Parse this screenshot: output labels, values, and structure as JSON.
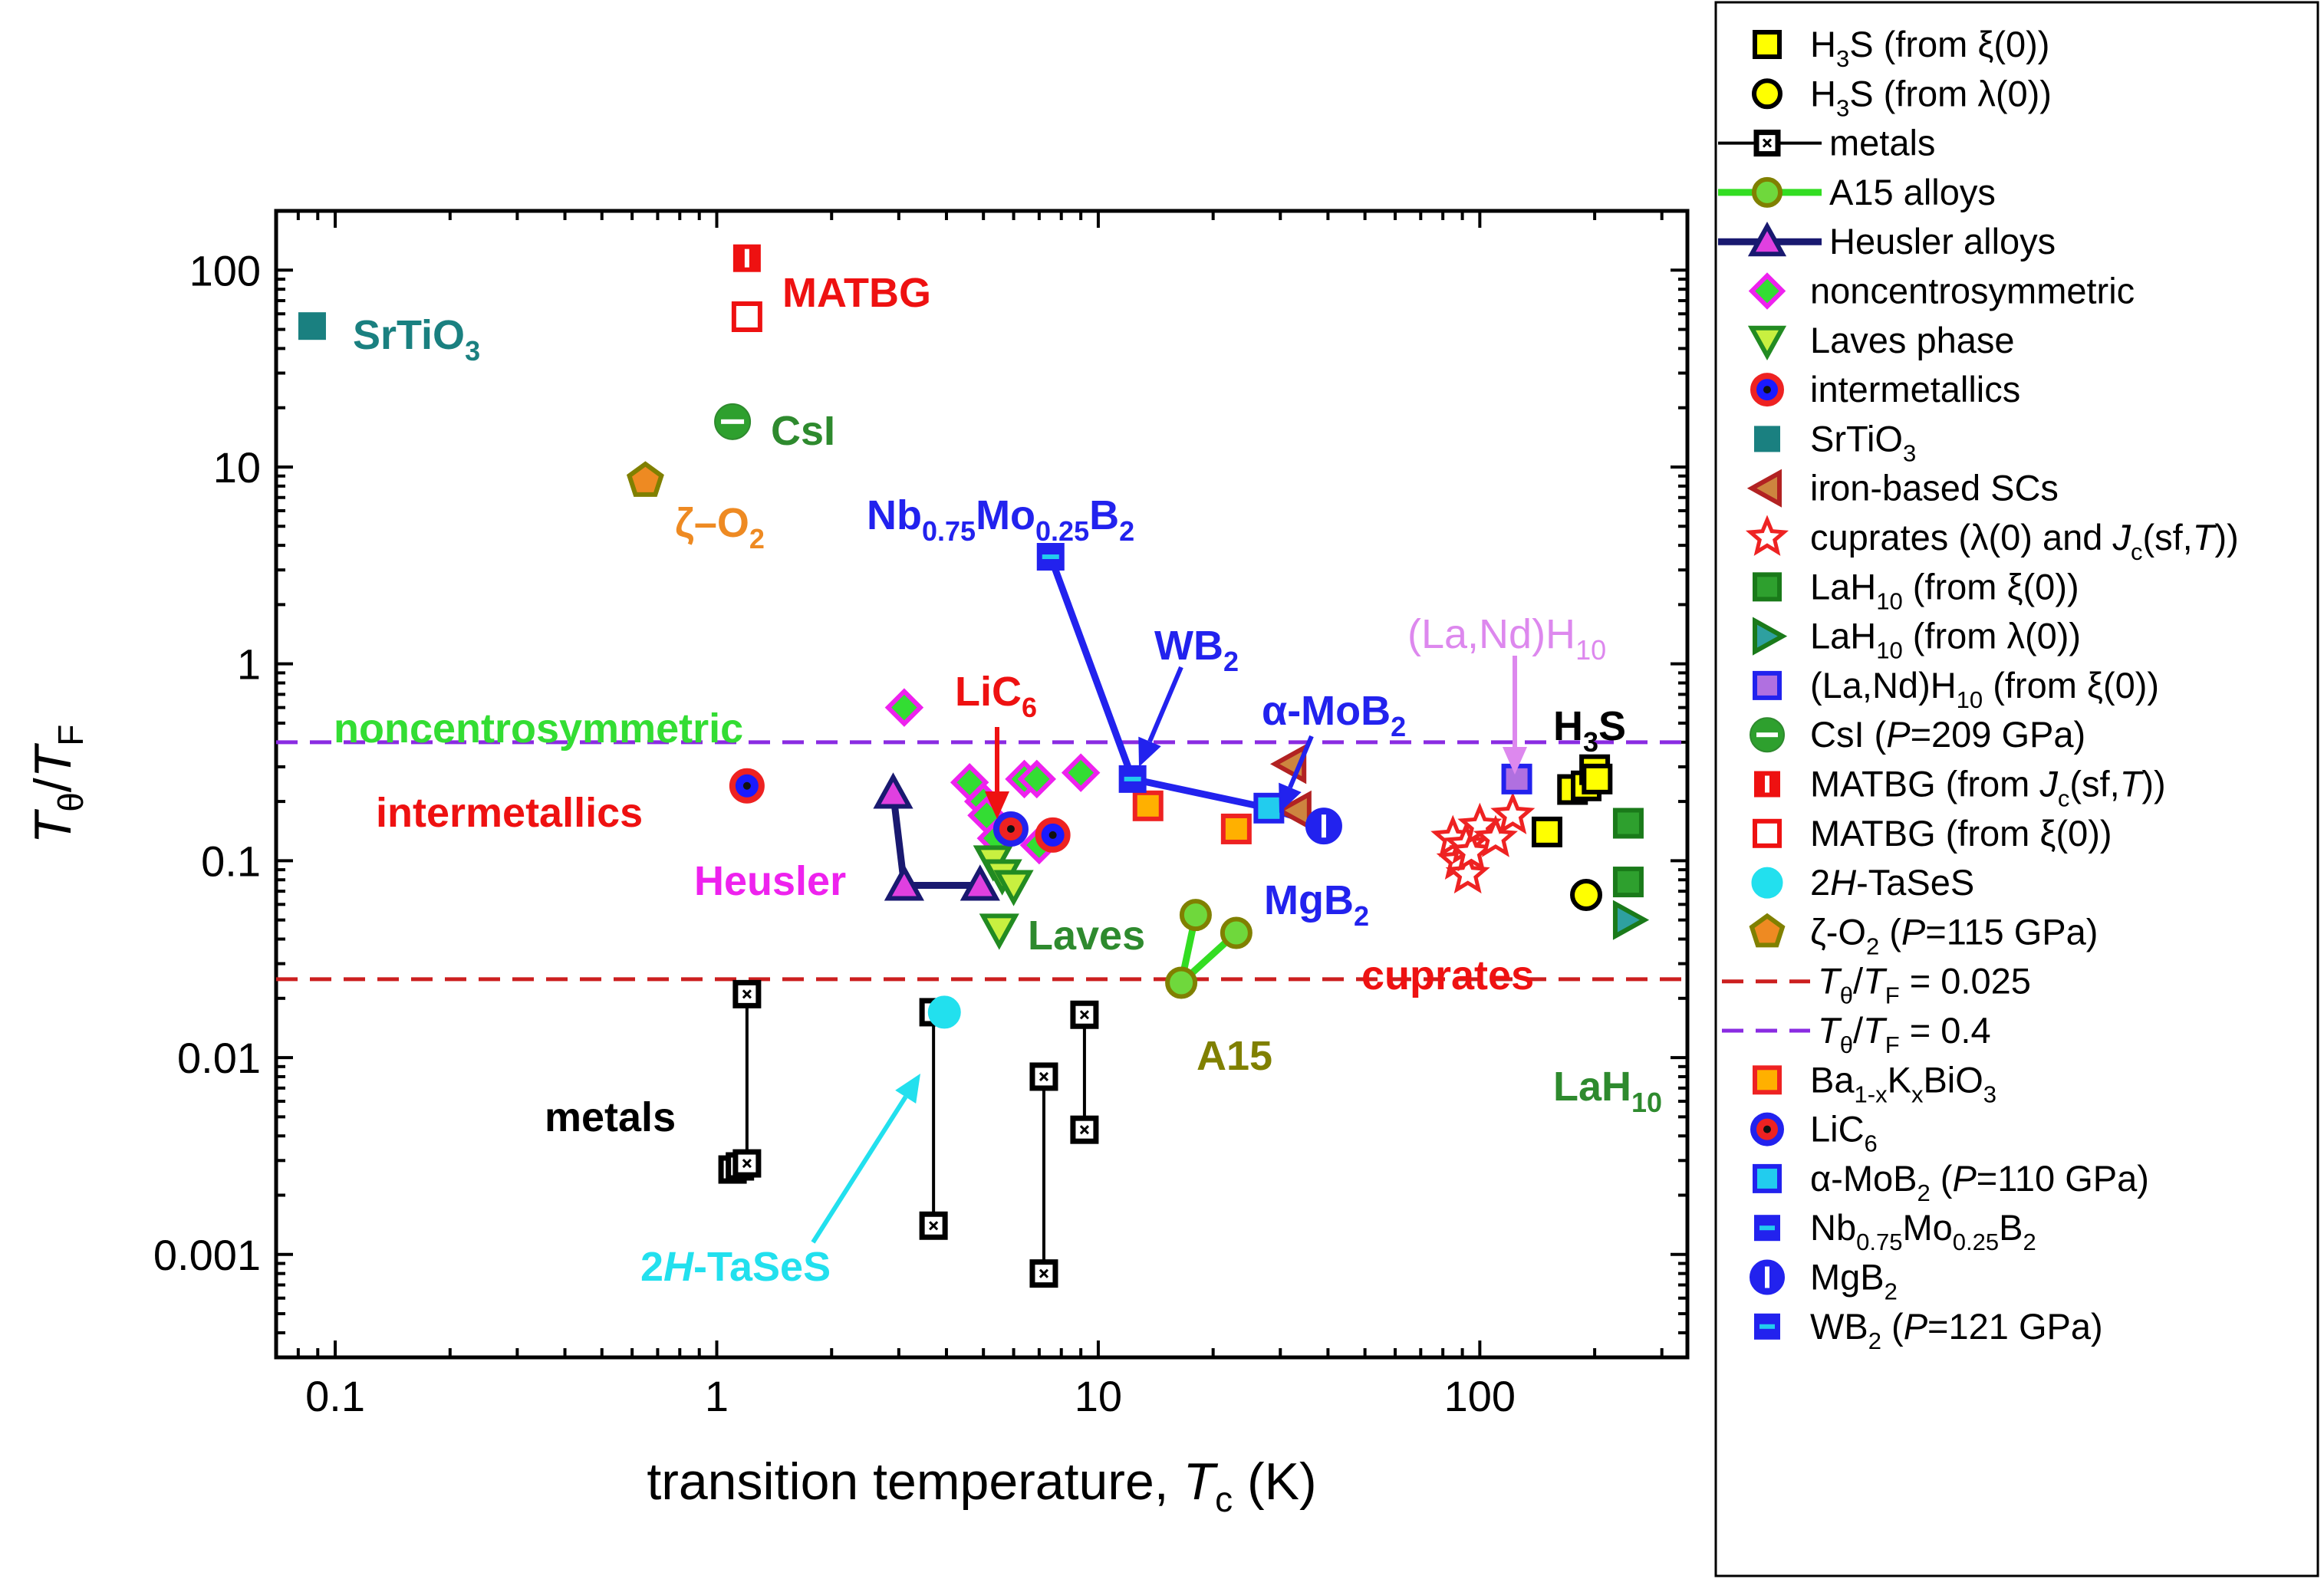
{
  "chart_data": {
    "type": "scatter",
    "xlabel": "transition temperature,",
    "xlabel_var": "T",
    "xlabel_sub": "c",
    "xlabel_unit": "(K)",
    "ylabel_num": "T",
    "ylabel_num_sub": "θ",
    "ylabel_den": "T",
    "ylabel_den_sub": "F",
    "xscale": "log",
    "yscale": "log",
    "xlim": [
      0.07,
      350
    ],
    "ylim": [
      0.0003,
      200
    ],
    "x_ticks": [
      0.1,
      1,
      10,
      100
    ],
    "x_tick_labels": [
      "0.1",
      "1",
      "10",
      "100"
    ],
    "y_ticks": [
      0.001,
      0.01,
      0.1,
      1,
      10,
      100
    ],
    "y_tick_labels": [
      "0.001",
      "0.01",
      "0.1",
      "1",
      "10",
      "100"
    ],
    "hlines": [
      {
        "name": "Tθ/TF = 0.025",
        "y": 0.025,
        "color": "#cc1f1f"
      },
      {
        "name": "Tθ/TF = 0.4",
        "y": 0.4,
        "color": "#8a2be2"
      }
    ],
    "series": [
      {
        "name": "H3S (from ξ(0))",
        "marker": "square",
        "fill": "#ffff00",
        "stroke": "#000000",
        "points": [
          [
            150,
            0.14
          ],
          [
            175,
            0.23
          ],
          [
            190,
            0.24
          ],
          [
            200,
            0.29
          ],
          [
            203,
            0.26
          ]
        ]
      },
      {
        "name": "H3S (from λ(0))",
        "marker": "circle",
        "fill": "#ffff00",
        "stroke": "#000000",
        "points": [
          [
            190,
            0.067
          ]
        ]
      },
      {
        "name": "metals",
        "marker": "squarex",
        "fill": "#ffffff",
        "stroke": "#000000",
        "line": true,
        "groups": [
          [
            [
              1.1,
              0.0027
            ],
            [
              1.15,
              0.0028
            ],
            [
              1.2,
              0.0029
            ],
            [
              1.2,
              0.021
            ]
          ],
          [
            [
              3.7,
              0.0014
            ],
            [
              3.7,
              0.017
            ]
          ],
          [
            [
              7.2,
              0.0008
            ],
            [
              7.2,
              0.008
            ]
          ],
          [
            [
              9.2,
              0.0043
            ],
            [
              9.2,
              0.0165
            ]
          ]
        ]
      },
      {
        "name": "A15 alloys",
        "marker": "circle",
        "fill": "#6fd83c",
        "stroke": "#808000",
        "line": true,
        "lineColor": "#33dd22",
        "groups": [
          [
            [
              16.5,
              0.024
            ],
            [
              18,
              0.053
            ]
          ],
          [
            [
              16.5,
              0.024
            ],
            [
              23,
              0.043
            ]
          ]
        ]
      },
      {
        "name": "Heusler alloys",
        "marker": "triangle",
        "fill": "#e040e0",
        "stroke": "#191970",
        "line": true,
        "groups": [
          [
            [
              2.9,
              0.22
            ],
            [
              3.1,
              0.075
            ],
            [
              4.9,
              0.075
            ]
          ]
        ]
      },
      {
        "name": "noncentrosymmetric",
        "marker": "diamond",
        "fill": "#33dd33",
        "stroke": "#ee22ee",
        "points": [
          [
            3.1,
            0.6
          ],
          [
            4.6,
            0.25
          ],
          [
            5.0,
            0.2
          ],
          [
            5.1,
            0.17
          ],
          [
            5.4,
            0.13
          ],
          [
            6.4,
            0.26
          ],
          [
            6.9,
            0.26
          ],
          [
            7.0,
            0.12
          ],
          [
            9.0,
            0.28
          ]
        ]
      },
      {
        "name": "Laves phase",
        "marker": "triangle-down",
        "fill": "#c8f040",
        "stroke": "#228b22",
        "points": [
          [
            5.3,
            0.1
          ],
          [
            5.6,
            0.085
          ],
          [
            6.0,
            0.075
          ],
          [
            5.5,
            0.045
          ]
        ]
      },
      {
        "name": "intermetallics",
        "marker": "circle-dot",
        "fill": "#1a1aff",
        "stroke": "#ee2222",
        "points": [
          [
            1.2,
            0.24
          ],
          [
            7.6,
            0.135
          ]
        ]
      },
      {
        "name": "SrTiO3",
        "marker": "square-filled",
        "fill": "#1a8080",
        "stroke": "#1a8080",
        "points": [
          [
            0.087,
            52
          ]
        ]
      },
      {
        "name": "iron-based SCs",
        "marker": "triangle-left",
        "fill": "#cd853f",
        "stroke": "#b22222",
        "points": [
          [
            32,
            0.31
          ],
          [
            33,
            0.18
          ]
        ]
      },
      {
        "name": "cuprates (λ(0) and Jc(sf,T))",
        "marker": "star",
        "fill": "#ffffff",
        "stroke": "#ee2222",
        "points": [
          [
            85,
            0.13
          ],
          [
            88,
            0.1
          ],
          [
            92,
            0.12
          ],
          [
            93,
            0.085
          ],
          [
            95,
            0.11
          ],
          [
            100,
            0.15
          ],
          [
            110,
            0.13
          ],
          [
            122,
            0.17
          ]
        ]
      },
      {
        "name": "LaH10 (from ξ(0))",
        "marker": "square",
        "fill": "#2ea02e",
        "stroke": "#1a7a1a",
        "points": [
          [
            245,
            0.155
          ],
          [
            245,
            0.078
          ]
        ]
      },
      {
        "name": "LaH10 (from λ(0))",
        "marker": "triangle-right",
        "fill": "#2ea0a0",
        "stroke": "#1a7a1a",
        "points": [
          [
            245,
            0.05
          ]
        ]
      },
      {
        "name": "(La,Nd)H10 (from ξ(0))",
        "marker": "square",
        "fill": "#b070e0",
        "stroke": "#2222ee",
        "points": [
          [
            125,
            0.26
          ]
        ]
      },
      {
        "name": "CsI (P=209 GPa)",
        "marker": "circle-halfbottom",
        "fill": "#2ea02e",
        "stroke": "#2e8a2e",
        "points": [
          [
            1.1,
            17
          ]
        ]
      },
      {
        "name": "MATBG (from Jc(sf,T))",
        "marker": "square-half",
        "fill": "#ee1111",
        "stroke": "#ee1111",
        "points": [
          [
            1.2,
            115
          ]
        ]
      },
      {
        "name": "MATBG (from ξ(0))",
        "marker": "square",
        "fill": "#ffffff",
        "stroke": "#ee1111",
        "points": [
          [
            1.2,
            58
          ]
        ]
      },
      {
        "name": "2H-TaSeS",
        "marker": "circle-filled",
        "fill": "#22e0ee",
        "stroke": "#22e0ee",
        "points": [
          [
            3.95,
            0.017
          ]
        ]
      },
      {
        "name": "ζ-O2 (P=115 GPa)",
        "marker": "pentagon",
        "fill": "#ee8a22",
        "stroke": "#808000",
        "points": [
          [
            0.65,
            8.5
          ]
        ]
      },
      {
        "name": "Ba1-xKxBiO3",
        "marker": "square",
        "fill": "#ffb000",
        "stroke": "#ee2222",
        "points": [
          [
            13.5,
            0.19
          ],
          [
            23,
            0.145
          ]
        ]
      },
      {
        "name": "LiC6",
        "marker": "circle-dot",
        "fill": "#ee2222",
        "stroke": "#2222ee",
        "points": [
          [
            5.9,
            0.145
          ]
        ]
      },
      {
        "name": "α-MoB2 (P=110 GPa)",
        "marker": "square",
        "fill": "#22ccee",
        "stroke": "#2222ee",
        "points": [
          [
            28,
            0.185
          ]
        ]
      },
      {
        "name": "Nb0.75Mo0.25B2",
        "marker": "square-bar",
        "fill": "#2222ee",
        "stroke": "#2222ee",
        "points": [
          [
            7.5,
            3.5
          ]
        ]
      },
      {
        "name": "MgB2",
        "marker": "circle-halfright",
        "fill": "#2222ee",
        "stroke": "#2222ee",
        "points": [
          [
            39,
            0.15
          ]
        ]
      },
      {
        "name": "WB2 (P=121 GPa)",
        "marker": "square-bar",
        "fill": "#2222ee",
        "stroke": "#2222ee",
        "points": [
          [
            12.3,
            0.26
          ]
        ]
      }
    ],
    "trend_line": {
      "color": "#2222ee",
      "points": [
        [
          7.5,
          3.5
        ],
        [
          12.3,
          0.26
        ],
        [
          28,
          0.185
        ],
        [
          39,
          0.15
        ]
      ]
    },
    "annotations": [
      {
        "text": "SrTiO3",
        "color": "#1a8080"
      },
      {
        "text": "MATBG",
        "color": "#ee1111"
      },
      {
        "text": "CsI",
        "color": "#2e8a2e"
      },
      {
        "text": "ζ–O2",
        "color": "#ee8a22"
      },
      {
        "text": "Nb0.75Mo0.25B2",
        "color": "#2222ee"
      },
      {
        "text": "WB2",
        "color": "#2222ee"
      },
      {
        "text": "α-MoB2",
        "color": "#2222ee"
      },
      {
        "text": "(La,Nd)H10",
        "color": "#dd88ee"
      },
      {
        "text": "H3S",
        "color": "#000000"
      },
      {
        "text": "noncentrosymmetric",
        "color": "#33dd33"
      },
      {
        "text": "LiC6",
        "color": "#ee1111"
      },
      {
        "text": "intermetallics",
        "color": "#ee1111"
      },
      {
        "text": "Heusler",
        "color": "#ee22ee"
      },
      {
        "text": "Laves",
        "color": "#2e8a2e"
      },
      {
        "text": "MgB2",
        "color": "#2222ee"
      },
      {
        "text": "cuprates",
        "color": "#ee1111"
      },
      {
        "text": "A15",
        "color": "#808000"
      },
      {
        "text": "LaH10",
        "color": "#2e8a2e"
      },
      {
        "text": "metals",
        "color": "#000000"
      },
      {
        "text": "2H-TaSeS",
        "color": "#22e0ee"
      }
    ],
    "legend_position": "right",
    "legend": [
      "H3S (from ξ(0))",
      "H3S (from λ(0))",
      "metals",
      "A15 alloys",
      "Heusler alloys",
      "noncentrosymmetric",
      "Laves phase",
      "intermetallics",
      "SrTiO3",
      "iron-based SCs",
      "cuprates (λ(0) and Jc(sf,T))",
      "LaH10 (from ξ(0))",
      "LaH10 (from λ(0))",
      "(La,Nd)H10 (from ξ(0))",
      "CsI (P=209 GPa)",
      "MATBG (from Jc(sf,T))",
      "MATBG (from ξ(0))",
      "2H-TaSeS",
      "ζ-O2 (P=115 GPa)",
      "Tθ/TF = 0.025",
      "Tθ/TF = 0.4",
      "Ba1-xKxBiO3",
      "LiC6",
      "α-MoB2 (P=110 GPa)",
      "Nb0.75Mo0.25B2",
      "MgB2",
      "WB2 (P=121 GPa)"
    ]
  }
}
